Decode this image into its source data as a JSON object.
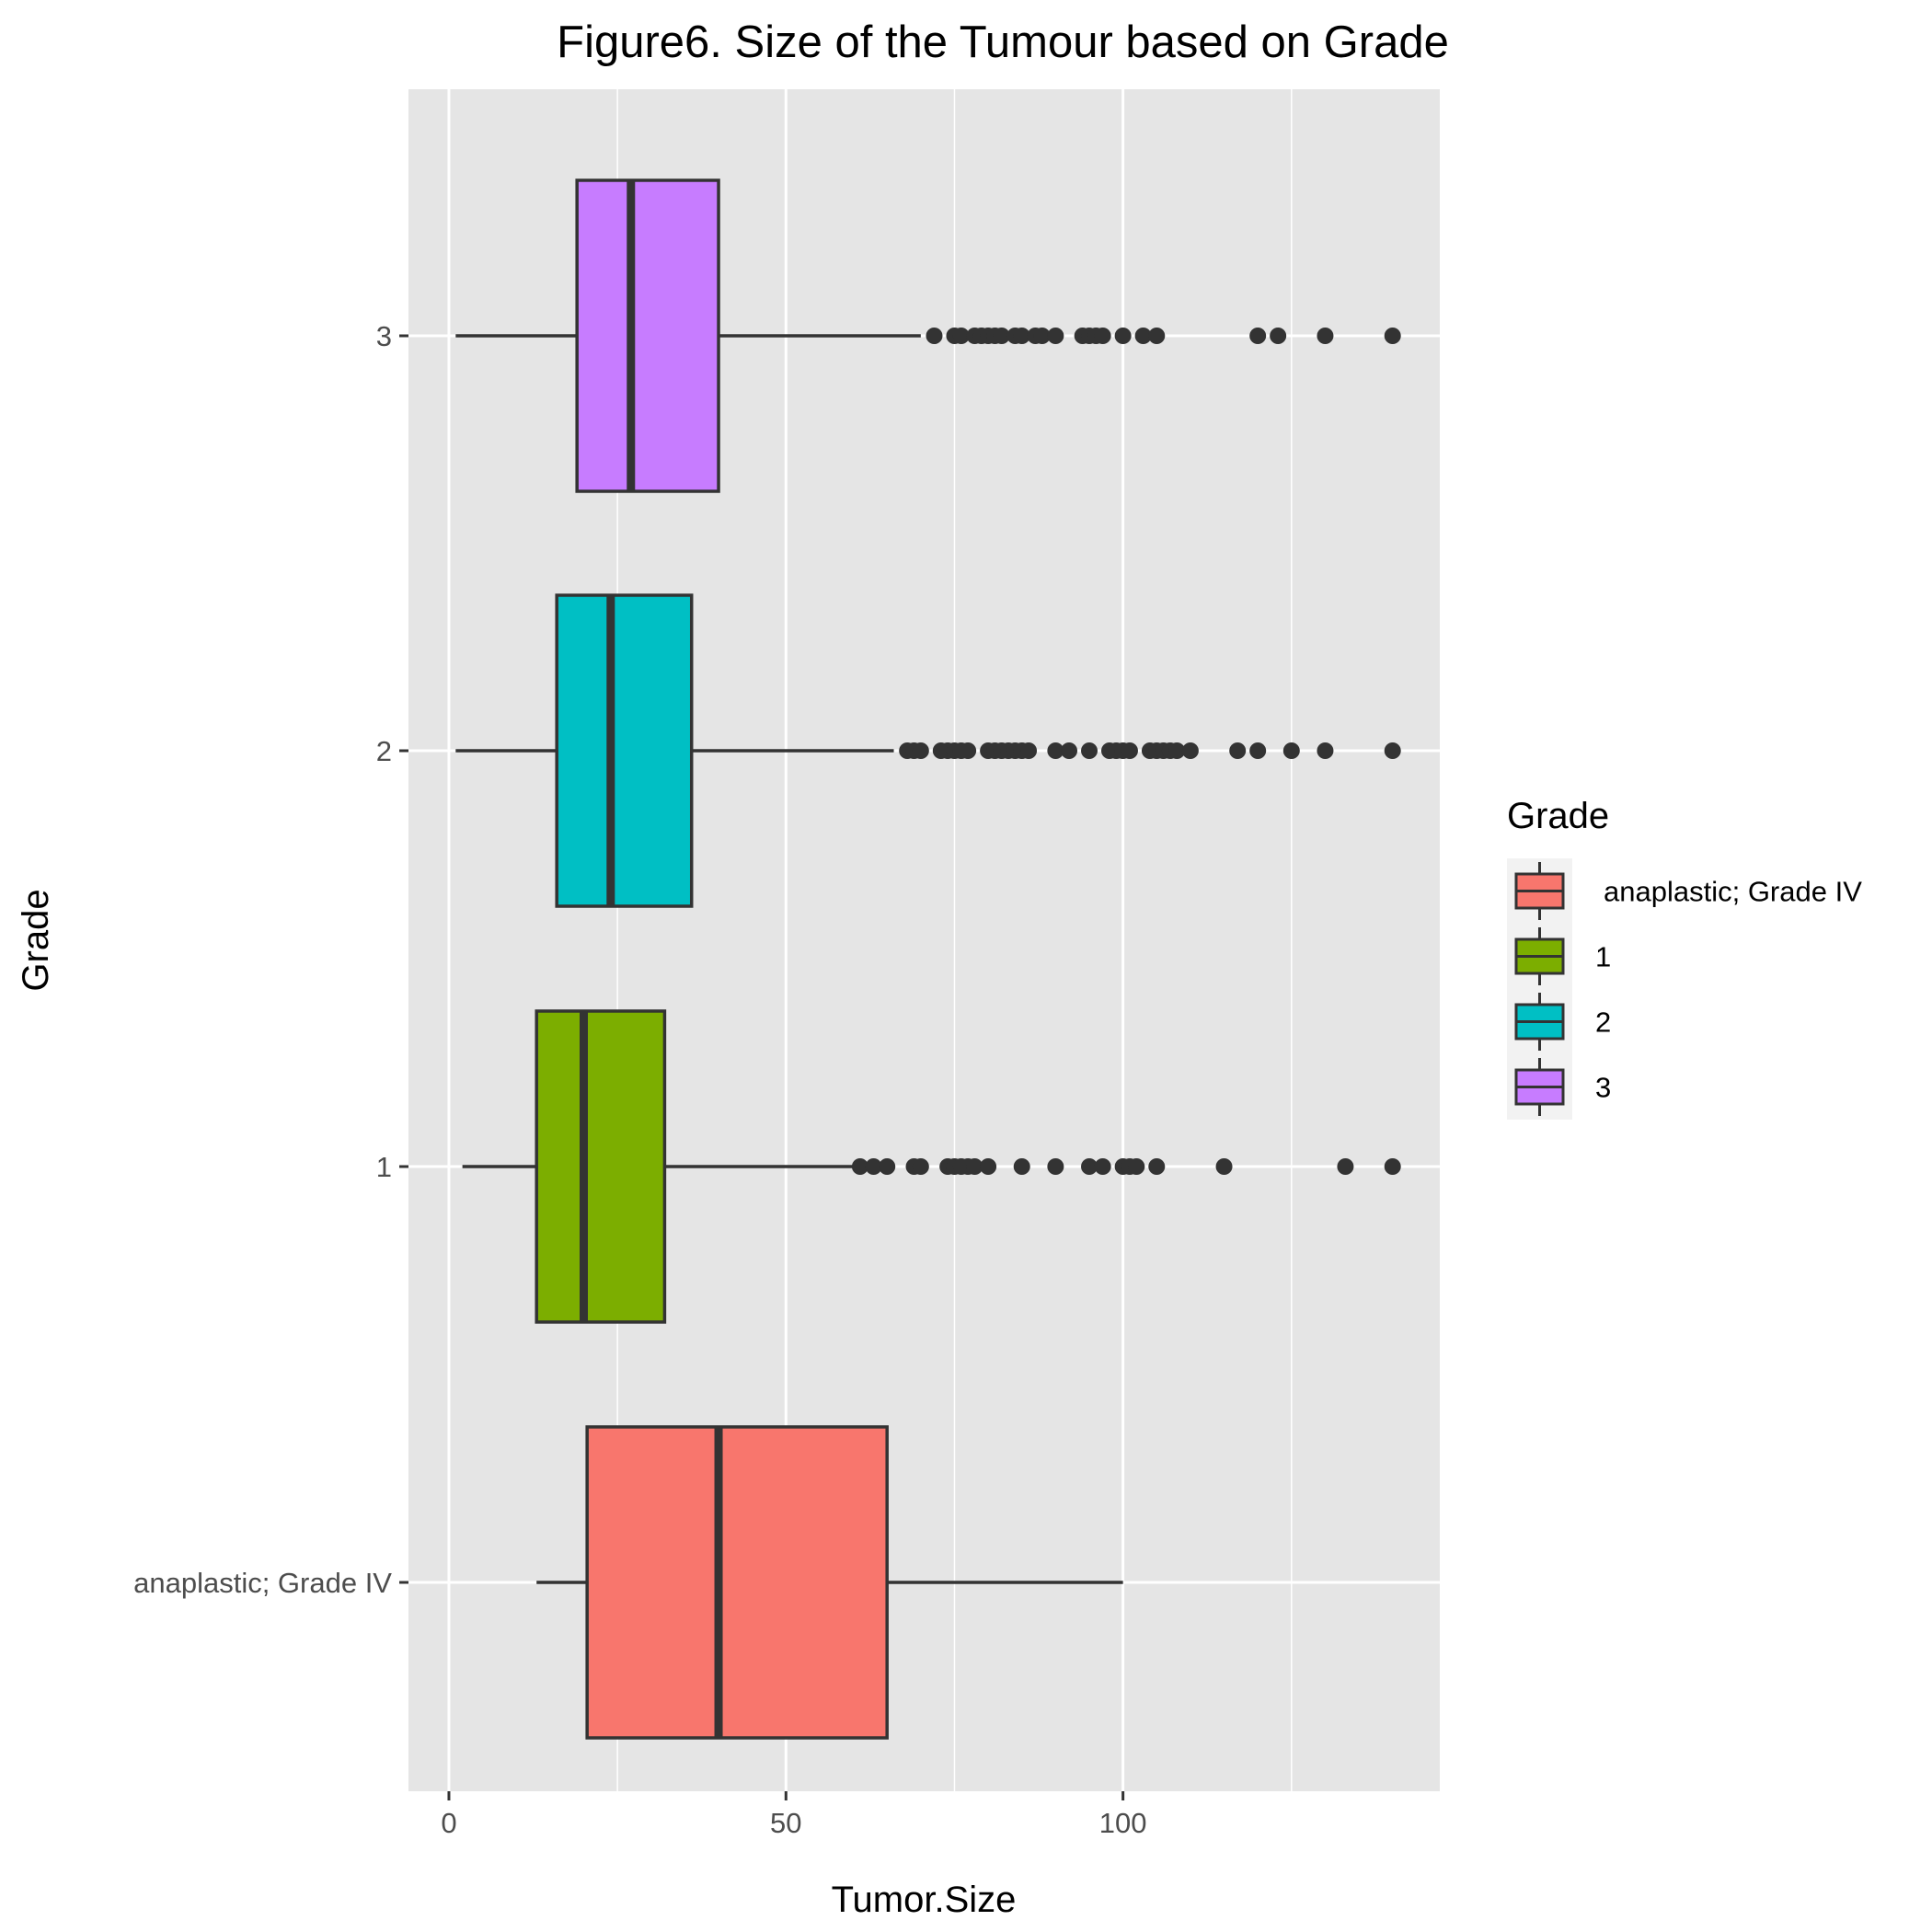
{
  "chart_data": {
    "type": "boxplot",
    "orientation": "horizontal",
    "title": "Figure6. Size of the Tumour based on Grade",
    "xlabel": "Tumor.Size",
    "ylabel": "Grade",
    "xlim": [
      -6,
      147
    ],
    "xticks": [
      0,
      50,
      100
    ],
    "grid": true,
    "legend": {
      "title": "Grade",
      "placement": "right",
      "entries": [
        "anaplastic; Grade IV",
        "1",
        "2",
        "3"
      ]
    },
    "categories": [
      "anaplastic; Grade IV",
      "1",
      "2",
      "3"
    ],
    "series": [
      {
        "name": "anaplastic; Grade IV",
        "color": "#F8766D",
        "whisker_low": 13,
        "q1": 20.5,
        "median": 40,
        "q3": 65,
        "whisker_high": 100,
        "outliers": []
      },
      {
        "name": "1",
        "color": "#7CAE00",
        "whisker_low": 2,
        "q1": 13,
        "median": 20,
        "q3": 32,
        "whisker_high": 60,
        "outliers": [
          61,
          63,
          65,
          69,
          70,
          74,
          75,
          76,
          77,
          78,
          80,
          85,
          90,
          95,
          97,
          100,
          101,
          102,
          105,
          115,
          133,
          140
        ]
      },
      {
        "name": "2",
        "color": "#00BFC4",
        "whisker_low": 1,
        "q1": 16,
        "median": 24,
        "q3": 36,
        "whisker_high": 66,
        "outliers": [
          68,
          69,
          70,
          73,
          74,
          75,
          76,
          77,
          80,
          81,
          82,
          83,
          84,
          85,
          86,
          90,
          92,
          95,
          98,
          99,
          100,
          101,
          104,
          105,
          106,
          107,
          108,
          110,
          117,
          120,
          125,
          130,
          140
        ]
      },
      {
        "name": "3",
        "color": "#C77CFF",
        "whisker_low": 1,
        "q1": 19,
        "median": 27,
        "q3": 40,
        "whisker_high": 70,
        "outliers": [
          72,
          75,
          76,
          78,
          79,
          80,
          81,
          82,
          84,
          85,
          87,
          88,
          90,
          94,
          95,
          96,
          97,
          100,
          103,
          105,
          120,
          123,
          130,
          140
        ]
      }
    ]
  },
  "colors": {
    "panel": "#E5E5E5",
    "grid": "#FFFFFF",
    "box_line": "#333333",
    "outlier": "#333333",
    "legend_key_bg": "#F2F2F2"
  }
}
